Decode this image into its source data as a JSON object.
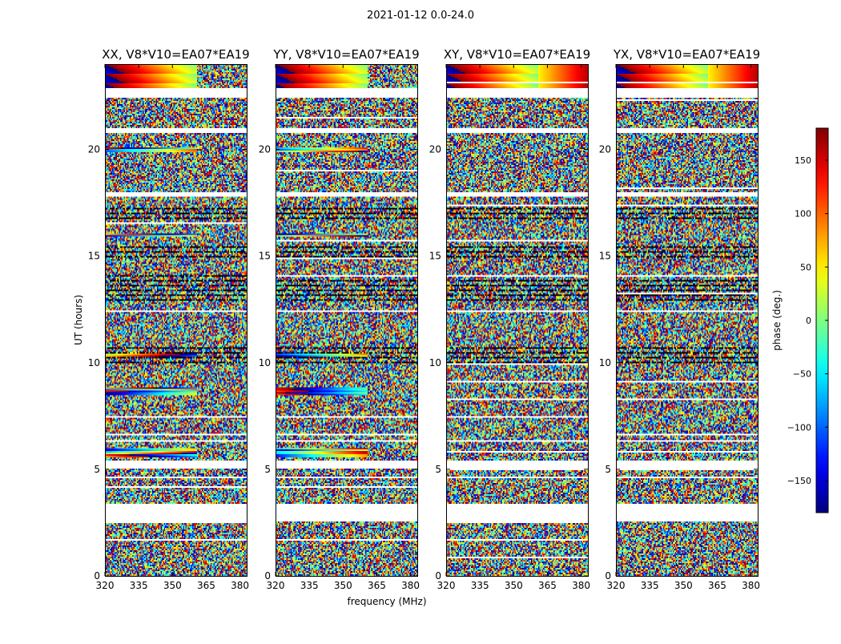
{
  "figure": {
    "suptitle": "2021-01-12 0.0-24.0"
  },
  "colors": {
    "background": "#ffffff",
    "axis": "#000000",
    "flagged": "#ffffff",
    "colormap": "jet"
  },
  "chart_data": [
    {
      "type": "heatmap",
      "title": "XX, V8*V10=EA07*EA19",
      "xlabel": "",
      "ylabel": "UT (hours)",
      "xlim": [
        320,
        383
      ],
      "ylim": [
        0,
        24
      ],
      "xticks": [
        320,
        335,
        350,
        365,
        380
      ],
      "yticks": [
        0,
        5,
        10,
        15,
        20
      ],
      "value": "phase (deg.)",
      "vlim": [
        -180,
        180
      ]
    },
    {
      "type": "heatmap",
      "title": "YY, V8*V10=EA07*EA19",
      "xlabel": "frequency (MHz)",
      "ylabel": "",
      "xlim": [
        320,
        383
      ],
      "ylim": [
        0,
        24
      ],
      "xticks": [
        320,
        335,
        350,
        365,
        380
      ],
      "yticks": [
        0,
        5,
        10,
        15,
        20
      ],
      "value": "phase (deg.)",
      "vlim": [
        -180,
        180
      ]
    },
    {
      "type": "heatmap",
      "title": "XY, V8*V10=EA07*EA19",
      "xlabel": "",
      "ylabel": "",
      "xlim": [
        320,
        383
      ],
      "ylim": [
        0,
        24
      ],
      "xticks": [
        320,
        335,
        350,
        365,
        380
      ],
      "yticks": [
        0,
        5,
        10,
        15,
        20
      ],
      "value": "phase (deg.)",
      "vlim": [
        -180,
        180
      ]
    },
    {
      "type": "heatmap",
      "title": "YX, V8*V10=EA07*EA19",
      "xlabel": "",
      "ylabel": "",
      "xlim": [
        320,
        383
      ],
      "ylim": [
        0,
        24
      ],
      "xticks": [
        320,
        335,
        350,
        365,
        380
      ],
      "yticks": [
        0,
        5,
        10,
        15,
        20
      ],
      "value": "phase (deg.)",
      "vlim": [
        -180,
        180
      ]
    }
  ],
  "colorbar": {
    "label": "phase (deg.)",
    "range": [
      -180,
      180
    ],
    "ticks": [
      150,
      100,
      50,
      0,
      -50,
      -100,
      -150
    ],
    "tick_labels": [
      "150",
      "100",
      "50",
      "0",
      "−50",
      "−100",
      "−150"
    ]
  }
}
